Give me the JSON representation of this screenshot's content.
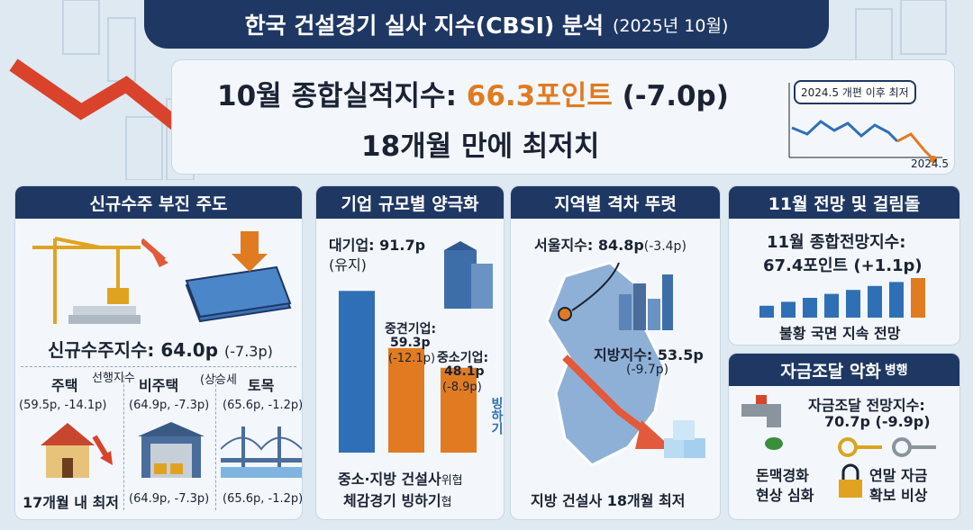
{
  "header": {
    "title": "한국 건설경기 실사 지수(CBSI) 분석",
    "date": "(2025년 10월)"
  },
  "hero": {
    "line1_prefix": "10월 종합실적지수: ",
    "line1_value": "66.3포인트",
    "line1_suffix": " (-7.0p)",
    "line2": "18개월 만에 최저치",
    "mini_tag": "2024.5 개편 이후 최저",
    "mini_date": "2024.5"
  },
  "panel1": {
    "title": "신규수주 부진 주도",
    "index_label": "신규수주지수: 64.0p",
    "index_change": "(-7.3p)",
    "col1_title": "주택",
    "col1_stat": "(59.5p, -14.1p)",
    "col1_note": "선행지수",
    "col2_title": "비주택",
    "col2_stat": "(64.9p, -7.3p)",
    "col2_note": "(상승세",
    "col3_title": "토목",
    "col3_stat": "(65.6p, -1.2p)",
    "bottom1": "17개월 내 최저",
    "bottom2": "(64.9p, -7.3p)",
    "bottom3": "(65.6p, -1.2p)"
  },
  "panel2": {
    "title": "기업 규모별 양극화",
    "large_label": "대기업: 91.7p",
    "large_note": "(유지)",
    "mid_label": "중견기업:",
    "mid_value": "59.3p",
    "mid_change": "(-12.1p)",
    "small_label": "중소기업:",
    "small_value": "48.1p",
    "small_change": "(-8.9p)",
    "freeze": "빙하기",
    "bottom_l1": "중소·지방 건설사",
    "bottom_l1_small": "위협",
    "bottom_l2": "체감경기 빙하기",
    "bottom_l2_small": "협",
    "bars": [
      91.7,
      59.3,
      48.1
    ]
  },
  "panel3": {
    "title": "지역별 격차 뚜렷",
    "seoul_label": "서울지수: 84.8p",
    "seoul_change": "(-3.4p)",
    "local_label": "지방지수: 53.5p",
    "local_change": "(-9.7p)",
    "bottom": "지방 건설사 18개월 최저"
  },
  "panel4": {
    "title": "11월 전망 및 걸림돌",
    "l1": "11월 종합전망지수:",
    "l2": "67.4포인트 (+1.1p)",
    "bottom": "불황 국면 지속 전망",
    "bars": [
      3,
      4,
      5,
      6,
      7,
      8,
      9,
      10
    ]
  },
  "panel5": {
    "title": "자금조달 악화",
    "title_suffix": "병행",
    "l1": "자금조달 전망지수:",
    "l2": "70.7p (-9.9p)",
    "left_l1": "돈맥경화",
    "left_l2": "현상 심화",
    "right_l1": "연말 자금",
    "right_l2": "확보 비상"
  },
  "colors": {
    "navy": "#1f3763",
    "orange": "#e07b22",
    "red": "#d9432b",
    "blue": "#2f6fb5"
  }
}
